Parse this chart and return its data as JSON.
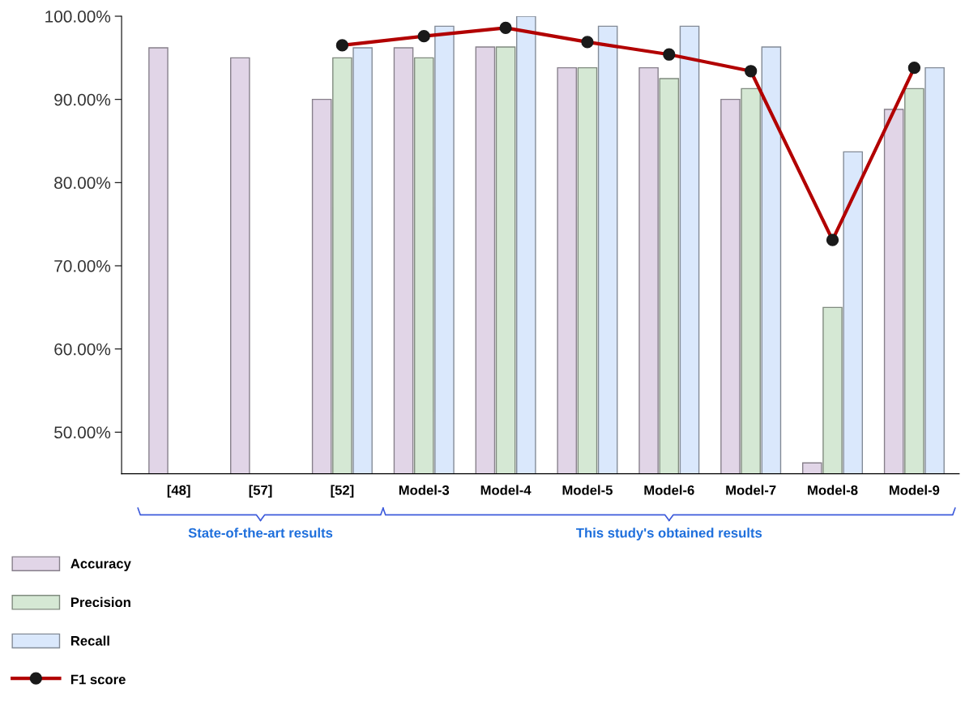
{
  "chart_data": {
    "type": "bar",
    "categories": [
      "[48]",
      "[57]",
      "[52]",
      "Model-3",
      "Model-4",
      "Model-5",
      "Model-6",
      "Model-7",
      "Model-8",
      "Model-9"
    ],
    "series": [
      {
        "name": "Accuracy",
        "color": "#e1d5e7",
        "values": [
          96.2,
          95.0,
          90.0,
          96.2,
          96.3,
          93.8,
          93.8,
          90.0,
          46.3,
          88.8
        ]
      },
      {
        "name": "Precision",
        "color": "#d5e8d4",
        "values": [
          null,
          null,
          95.0,
          95.0,
          96.3,
          93.8,
          92.5,
          91.3,
          65.0,
          91.3
        ]
      },
      {
        "name": "Recall",
        "color": "#dae8fc",
        "values": [
          null,
          null,
          96.2,
          98.8,
          100.0,
          98.8,
          98.8,
          96.3,
          83.7,
          93.8
        ]
      },
      {
        "name": "F1 score",
        "type": "line",
        "color": "#b20000",
        "values": [
          null,
          null,
          96.5,
          97.6,
          98.6,
          96.9,
          95.4,
          93.4,
          73.1,
          93.8
        ]
      }
    ],
    "ylim": [
      45,
      100
    ],
    "yticks": [
      {
        "value": 50,
        "label": "50.00%"
      },
      {
        "value": 60,
        "label": "60.00%"
      },
      {
        "value": 70,
        "label": "70.00%"
      },
      {
        "value": 80,
        "label": "80.00%"
      },
      {
        "value": 90,
        "label": "90.00%"
      },
      {
        "value": 100,
        "label": "100.00%"
      }
    ],
    "marker": "circle",
    "line_style": "solid",
    "grid": false,
    "legend": "bottom left",
    "annotations": [
      "State-of-the-art results",
      "This study's obtained results"
    ]
  }
}
